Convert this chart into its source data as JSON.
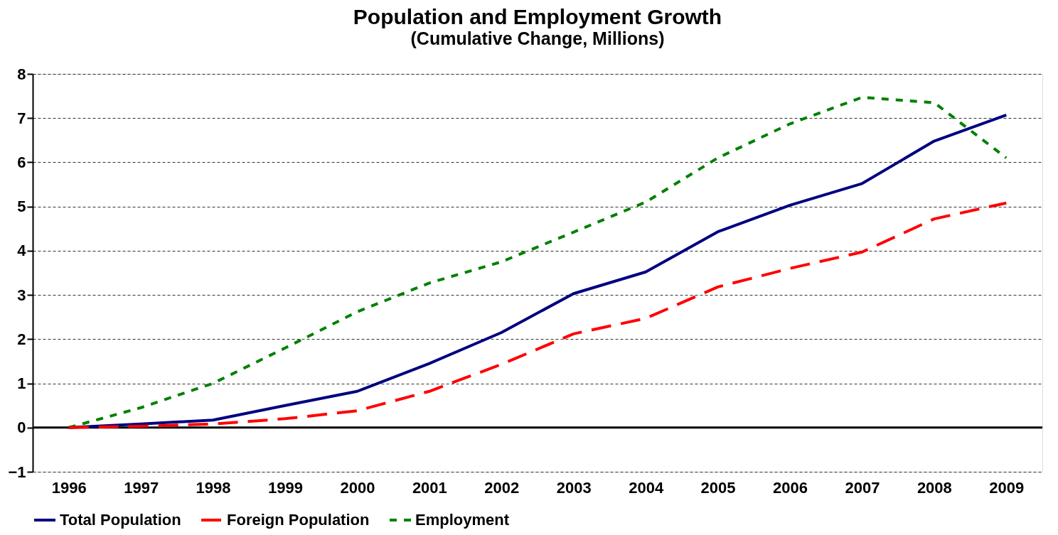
{
  "chart_data": {
    "type": "line",
    "title": "Population and Employment Growth",
    "subtitle": "(Cumulative Change, Millions)",
    "categories": [
      "1996",
      "1997",
      "1998",
      "1999",
      "2000",
      "2001",
      "2002",
      "2003",
      "2004",
      "2005",
      "2006",
      "2007",
      "2008",
      "2009"
    ],
    "series": [
      {
        "name": "Total Population",
        "color": "#000080",
        "line_style": "solid",
        "values": [
          0,
          0.08,
          0.17,
          0.5,
          0.82,
          1.45,
          2.15,
          3.03,
          3.52,
          4.43,
          5.03,
          5.52,
          6.48,
          7.07
        ]
      },
      {
        "name": "Foreign Population",
        "color": "#ff0000",
        "line_style": "dashed",
        "values": [
          0,
          0.03,
          0.08,
          0.2,
          0.38,
          0.82,
          1.43,
          2.12,
          2.47,
          3.18,
          3.6,
          3.97,
          4.72,
          5.08
        ]
      },
      {
        "name": "Employment",
        "color": "#008000",
        "line_style": "dotted",
        "values": [
          0,
          0.45,
          1.0,
          1.8,
          2.62,
          3.27,
          3.75,
          4.42,
          5.1,
          6.1,
          6.87,
          7.47,
          7.35,
          6.1
        ]
      }
    ],
    "ylim": [
      -1,
      8
    ],
    "yticks": [
      -1,
      0,
      1,
      2,
      3,
      4,
      5,
      6,
      7,
      8
    ],
    "grid": "y",
    "legend": "bottom",
    "marker": "none",
    "ref_lines": [
      {
        "axis": "y",
        "value": 0,
        "color": "#000000"
      }
    ]
  }
}
